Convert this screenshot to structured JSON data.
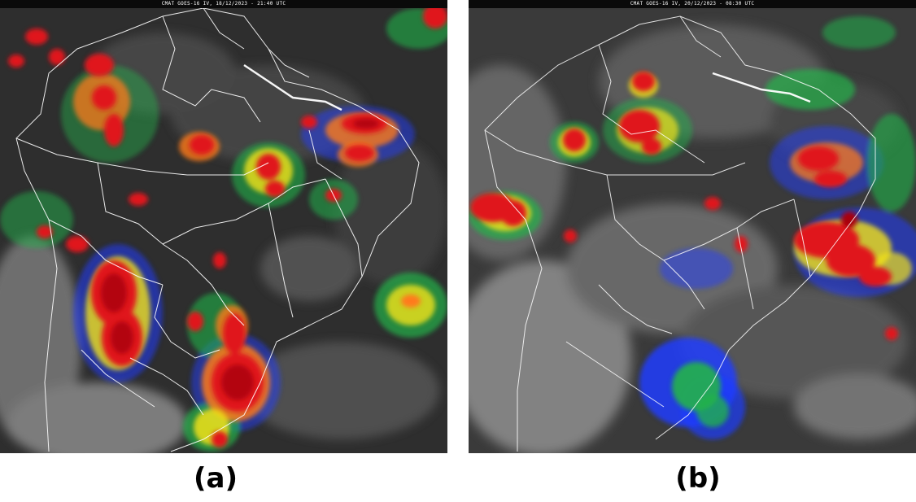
{
  "panels": [
    {
      "id": "a",
      "header": "CMAT GOES-16 IV, 18/12/2023 - 21:40 UTC",
      "caption": "(a)"
    },
    {
      "id": "b",
      "header": "CMAT GOES-16 IV, 20/12/2023 - 08:30 UTC",
      "caption": "(b)"
    }
  ],
  "colors": {
    "background_dark": "#2b2b2b",
    "cloud_gray": "#6e6e6e",
    "ocean_gray": "#8a8a8a",
    "blue": "#1f3dff",
    "green": "#22b24a",
    "yellow": "#f2e219",
    "orange": "#ff7a1a",
    "red": "#e0141e",
    "dark_red": "#a8000a",
    "border": "#ffffff"
  }
}
